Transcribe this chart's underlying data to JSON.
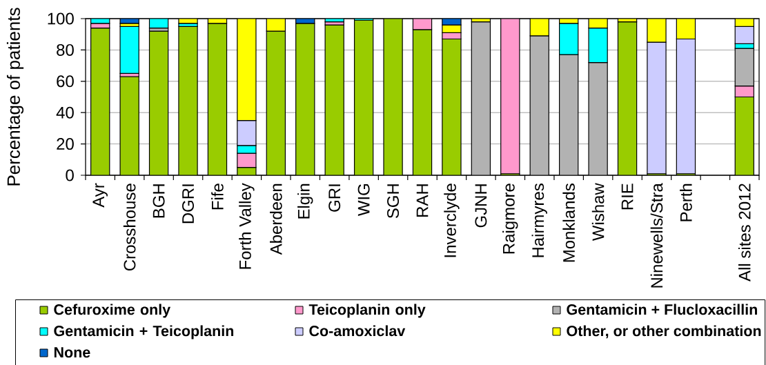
{
  "chart_data": {
    "type": "bar",
    "stacked": true,
    "ylabel": "Percentage of patients",
    "categories": [
      "Ayr",
      "Crosshouse",
      "BGH",
      "DGRI",
      "Fife",
      "Forth Valley",
      "Aberdeen",
      "Elgin",
      "GRI",
      "WIG",
      "SGH",
      "RAH",
      "Inverclyde",
      "GJNH",
      "Raigmore",
      "Hairmyres",
      "Monklands",
      "Wishaw",
      "RIE",
      "Ninewells/Stra",
      "Perth",
      null,
      "All sites 2012"
    ],
    "series": [
      {
        "name": "Cefuroxime only",
        "color": "#99cc00",
        "values": [
          94,
          63,
          92,
          95,
          97,
          5,
          92,
          97,
          96,
          99,
          100,
          93,
          87,
          null,
          1,
          null,
          null,
          null,
          98,
          1,
          1,
          null,
          50
        ]
      },
      {
        "name": "Teicoplanin only",
        "color": "#ff99cc",
        "values": [
          3,
          2,
          null,
          null,
          null,
          9,
          null,
          null,
          2,
          null,
          null,
          7,
          4,
          null,
          99,
          null,
          null,
          null,
          null,
          null,
          null,
          null,
          7
        ]
      },
      {
        "name": "Gentamicin + Flucloxacillin",
        "color": "#b2b2b2",
        "values": [
          null,
          null,
          2,
          null,
          null,
          null,
          null,
          null,
          null,
          null,
          null,
          null,
          null,
          98,
          null,
          89,
          77,
          72,
          null,
          null,
          null,
          null,
          24
        ]
      },
      {
        "name": "Gentamicin + Teicoplanin",
        "color": "#00ffff",
        "values": [
          3,
          30,
          6,
          2,
          null,
          5,
          null,
          null,
          2,
          1,
          null,
          null,
          null,
          null,
          null,
          null,
          20,
          22,
          null,
          null,
          null,
          null,
          3
        ]
      },
      {
        "name": "Co-amoxiclav",
        "color": "#ccccff",
        "values": [
          null,
          null,
          null,
          null,
          null,
          16,
          null,
          null,
          null,
          null,
          null,
          null,
          null,
          null,
          null,
          null,
          null,
          null,
          null,
          84,
          86,
          null,
          11
        ]
      },
      {
        "name": "Other, or other combination",
        "color": "#ffff00",
        "values": [
          null,
          2,
          null,
          3,
          3,
          65,
          8,
          null,
          null,
          null,
          null,
          null,
          5,
          2,
          null,
          11,
          3,
          6,
          2,
          15,
          13,
          null,
          5
        ]
      },
      {
        "name": "None",
        "color": "#0066cc",
        "values": [
          null,
          3,
          null,
          null,
          null,
          null,
          null,
          3,
          null,
          null,
          null,
          null,
          4,
          null,
          null,
          null,
          null,
          null,
          null,
          null,
          null,
          null,
          null
        ]
      }
    ],
    "ylim": [
      0,
      100
    ],
    "yticks": [
      0,
      20,
      40,
      60,
      80,
      100
    ],
    "grid": "y",
    "legend": "bottom"
  }
}
